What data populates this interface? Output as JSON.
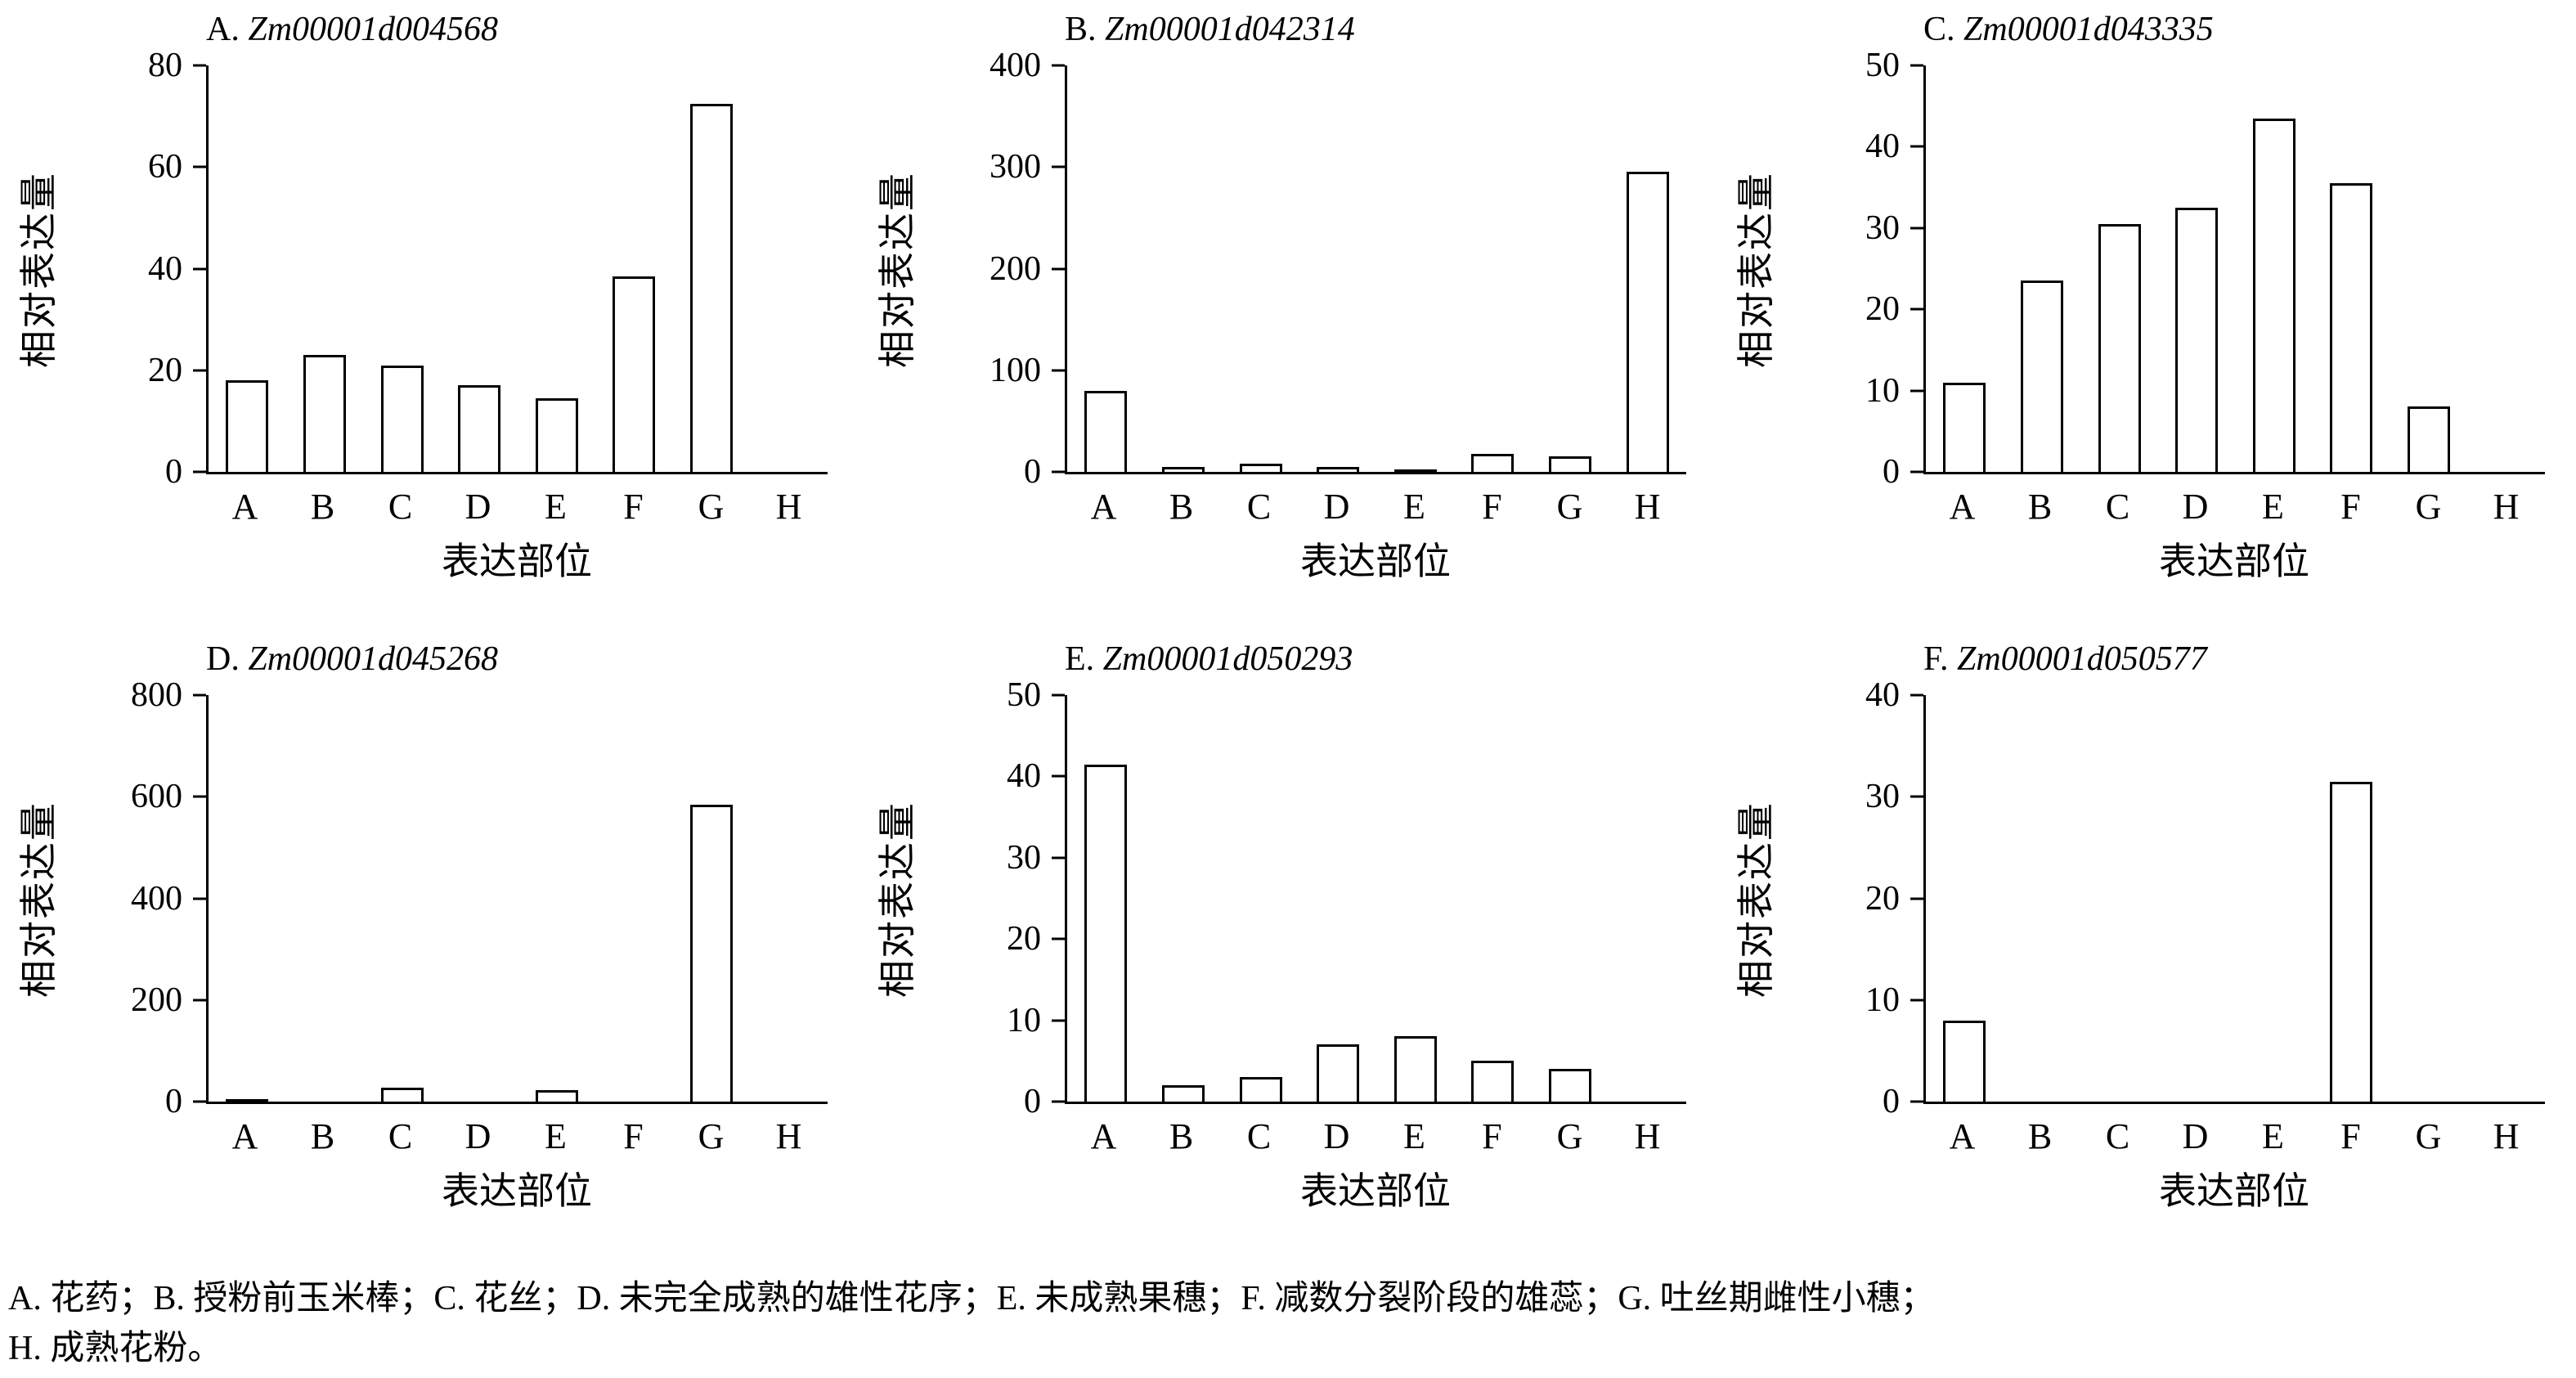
{
  "figure": {
    "colors": {
      "bar_fill": "#ffffff",
      "bar_border": "#000000",
      "axis": "#000000",
      "background": "#ffffff"
    },
    "caption_line1": "A. 花药；B. 授粉前玉米棒；C. 花丝；D. 未完全成熟的雄性花序；E. 未成熟果穗；F. 减数分裂阶段的雄蕊；G. 吐丝期雌性小穗；",
    "caption_line2": "H. 成熟花粉。"
  },
  "chart_data": [
    {
      "type": "bar",
      "panel_label": "A.",
      "gene": "Zm00001d004568",
      "title": "A. Zm00001d004568",
      "categories": [
        "A",
        "B",
        "C",
        "D",
        "E",
        "F",
        "G",
        "H"
      ],
      "values": [
        18,
        23,
        21,
        17,
        14.5,
        38.5,
        72.5,
        0
      ],
      "xlabel": "表达部位",
      "ylabel": "相对表达量",
      "ylim": [
        0,
        80
      ],
      "ytick_step": 20,
      "grid": false,
      "legend": "none"
    },
    {
      "type": "bar",
      "panel_label": "B.",
      "gene": "Zm00001d042314",
      "title": "B. Zm00001d042314",
      "categories": [
        "A",
        "B",
        "C",
        "D",
        "E",
        "F",
        "G",
        "H"
      ],
      "values": [
        80,
        5,
        8,
        5,
        2,
        18,
        15,
        295
      ],
      "xlabel": "表达部位",
      "ylabel": "相对表达量",
      "ylim": [
        0,
        400
      ],
      "ytick_step": 100,
      "grid": false,
      "legend": "none"
    },
    {
      "type": "bar",
      "panel_label": "C.",
      "gene": "Zm00001d043335",
      "title": "C. Zm00001d043335",
      "categories": [
        "A",
        "B",
        "C",
        "D",
        "E",
        "F",
        "G",
        "H"
      ],
      "values": [
        11,
        23.5,
        30.5,
        32.5,
        43.5,
        35.5,
        8,
        0
      ],
      "xlabel": "表达部位",
      "ylabel": "相对表达量",
      "ylim": [
        0,
        50
      ],
      "ytick_step": 10,
      "grid": false,
      "legend": "none"
    },
    {
      "type": "bar",
      "panel_label": "D.",
      "gene": "Zm00001d045268",
      "title": "D. Zm00001d045268",
      "categories": [
        "A",
        "B",
        "C",
        "D",
        "E",
        "F",
        "G",
        "H"
      ],
      "values": [
        5,
        0,
        28,
        0,
        22,
        0,
        585,
        0
      ],
      "xlabel": "表达部位",
      "ylabel": "相对表达量",
      "ylim": [
        0,
        800
      ],
      "ytick_step": 200,
      "grid": false,
      "legend": "none"
    },
    {
      "type": "bar",
      "panel_label": "E.",
      "gene": "Zm00001d050293",
      "title": "E. Zm00001d050293",
      "categories": [
        "A",
        "B",
        "C",
        "D",
        "E",
        "F",
        "G",
        "H"
      ],
      "values": [
        41.5,
        2,
        3,
        7,
        8,
        5,
        4,
        0
      ],
      "xlabel": "表达部位",
      "ylabel": "相对表达量",
      "ylim": [
        0,
        50
      ],
      "ytick_step": 10,
      "grid": false,
      "legend": "none"
    },
    {
      "type": "bar",
      "panel_label": "F.",
      "gene": "Zm00001d050577",
      "title": "F. Zm00001d050577",
      "categories": [
        "A",
        "B",
        "C",
        "D",
        "E",
        "F",
        "G",
        "H"
      ],
      "values": [
        8,
        0,
        0,
        0,
        0,
        31.5,
        0,
        0
      ],
      "xlabel": "表达部位",
      "ylabel": "相对表达量",
      "ylim": [
        0,
        40
      ],
      "ytick_step": 10,
      "grid": false,
      "legend": "none"
    }
  ]
}
